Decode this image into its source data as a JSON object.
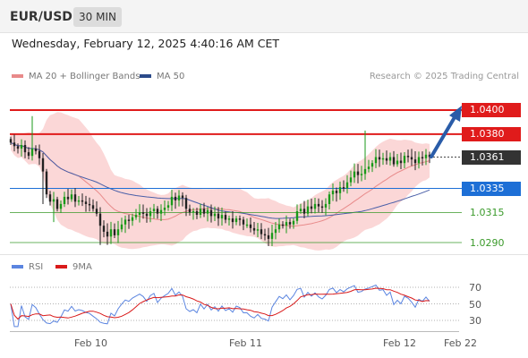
{
  "header": {
    "symbol": "EUR/USD",
    "timeframe": "30 MIN",
    "datetime": "Wednesday, February 12, 2025 4:40:16 AM CET"
  },
  "legend": {
    "ma20": "MA 20 + Bollinger Bands",
    "ma50": "MA 50",
    "credit": "Research © 2025 Trading Central"
  },
  "levels": {
    "r2": "1.0400",
    "r1": "1.0380",
    "last": "1.0361",
    "s0": "1.0335",
    "s1": "1.0315",
    "s2": "1.0290"
  },
  "rsi": {
    "legend_rsi": "RSI",
    "legend_ma": "9MA",
    "ticks": [
      "70",
      "50",
      "30"
    ]
  },
  "xaxis": [
    "Feb 10",
    "Feb 11",
    "Feb 12",
    "Feb 22"
  ],
  "colors": {
    "resistance": "#e01b1b",
    "support_blue": "#1d6fd6",
    "support_green": "#3a9a2a",
    "up": "#1a9a1a",
    "down": "#222222",
    "band": "#f9c9c9",
    "ma20": "#e88a8a",
    "ma50": "#4a5fa8",
    "rsi": "#5b85e0",
    "rsi_ma": "#d91a1a"
  },
  "chart_data": [
    {
      "type": "candlestick",
      "title": "EUR/USD",
      "xlabels": [
        "Feb 10",
        "Feb 11",
        "Feb 12",
        "Feb 22"
      ],
      "ylim": [
        1.0285,
        1.0405
      ],
      "horizontal_levels": [
        1.04,
        1.038,
        1.0361,
        1.0335,
        1.0315,
        1.029
      ],
      "close": [
        1.0373,
        1.037,
        1.0368,
        1.0371,
        1.0365,
        1.0362,
        1.0368,
        1.0366,
        1.036,
        1.0349,
        1.033,
        1.0324,
        1.0326,
        1.0318,
        1.0322,
        1.0328,
        1.0326,
        1.033,
        1.0324,
        1.0325,
        1.0324,
        1.0322,
        1.0321,
        1.0318,
        1.0314,
        1.0304,
        1.0299,
        1.0295,
        1.0301,
        1.0296,
        1.0301,
        1.0305,
        1.0309,
        1.0308,
        1.0311,
        1.0313,
        1.0315,
        1.0314,
        1.0312,
        1.0316,
        1.0318,
        1.0314,
        1.0317,
        1.0319,
        1.0321,
        1.0328,
        1.0325,
        1.0329,
        1.0327,
        1.0318,
        1.0315,
        1.0316,
        1.0313,
        1.0318,
        1.0314,
        1.0317,
        1.0312,
        1.0314,
        1.031,
        1.0313,
        1.0309,
        1.031,
        1.0307,
        1.031,
        1.0309,
        1.0305,
        1.0305,
        1.0302,
        1.03,
        1.0301,
        1.0297,
        1.0296,
        1.0293,
        1.0298,
        1.0301,
        1.0305,
        1.0304,
        1.0307,
        1.0305,
        1.0308,
        1.0316,
        1.0318,
        1.0314,
        1.032,
        1.0318,
        1.0322,
        1.032,
        1.0319,
        1.0322,
        1.033,
        1.0333,
        1.0331,
        1.0336,
        1.0335,
        1.034,
        1.0344,
        1.0349,
        1.0346,
        1.0347,
        1.0351,
        1.0353,
        1.0356,
        1.0361,
        1.0359,
        1.036,
        1.0358,
        1.0361,
        1.0355,
        1.0358,
        1.0356,
        1.0362,
        1.0361,
        1.0359,
        1.0356,
        1.0361,
        1.036,
        1.0363,
        1.0361
      ],
      "forecast_target": 1.04
    },
    {
      "type": "line",
      "title": "RSI",
      "series": [
        {
          "name": "RSI"
        },
        {
          "name": "9MA"
        }
      ],
      "yticks": [
        70,
        50,
        30
      ]
    }
  ]
}
